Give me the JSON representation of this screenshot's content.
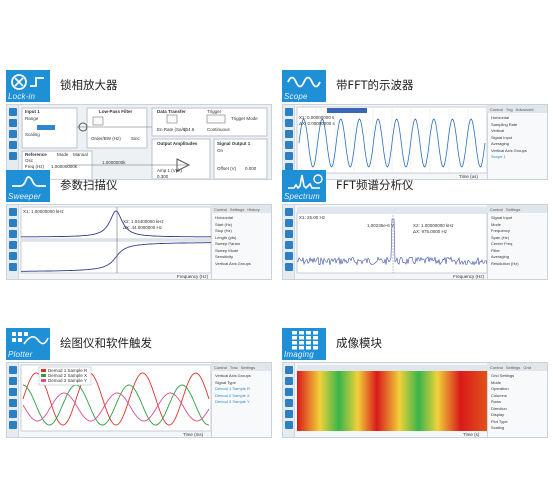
{
  "colors": {
    "badge": "#1f8fd6",
    "signal_blue": "#2d6fb8",
    "signal_red": "#d9342b",
    "signal_green": "#2f9e3f",
    "signal_pink": "#d94f8c",
    "heatmap_red": "#d91a1a",
    "heatmap_yellow": "#f2d13a",
    "heatmap_green": "#38b54a"
  },
  "tiles": [
    {
      "id": "lockin",
      "title": "锁相放大器",
      "badge_label": "Lock-in",
      "icon": "lockin-icon",
      "labels": {
        "input": "Input 1",
        "lpf": "Low-Pass Filter",
        "data_transfer": "Data Transfer",
        "reference": "Reference",
        "osc": "Osc",
        "freq": "Freq (Hz)",
        "freq_val": "1.00000000k",
        "harmonic": "Harmonic",
        "phase": "Phase",
        "output_amplitudes": "Output Amplitudes",
        "signal_output": "Signal Output 1",
        "trigger": "Trigger",
        "trigger_mode": "Trigger Mode",
        "continuous": "Continuous",
        "range": "Range",
        "scaling": "Scaling",
        "order": "Order/BW (Hz)",
        "sinc": "Sinc",
        "rate": "En Rate (Sa/s)",
        "rate_val": "104.6",
        "amp": "Amp 1 (Vpk)",
        "amp_val": "0.300",
        "on": "On",
        "offset": "Offset (V)",
        "offset_val": "0.000",
        "mode": "Mode",
        "manual": "Manual",
        "freq2_val": "1.0000000k"
      }
    },
    {
      "id": "scope",
      "title": "带FFT的示波器",
      "badge_label": "Scope",
      "icon": "scope-wave-icon",
      "tabs": [
        "Control",
        "Trig",
        "Advanced",
        "History",
        "Math"
      ],
      "cursor_labels": [
        "X1: 0.00000000 s",
        "ΔX: 0.00000000 s"
      ],
      "panel_labels": [
        "Horizontal",
        "Sampling Rate",
        "Vertical",
        "Signal Input",
        "Averaging",
        "Vertical Axis Groups",
        "Scope 1"
      ],
      "xlabel": "Time (us)"
    },
    {
      "id": "sweeper",
      "title": "参数扫描仪",
      "badge_label": "Sweeper",
      "icon": "sweeper-icon",
      "tabs": [
        "Control",
        "Settings",
        "History",
        "Math"
      ],
      "cursor_labels": [
        "X1: 1.00000000 kHz",
        "X2: 1.04400000 kHz",
        "ΔX: 44.0000000 Hz"
      ],
      "panel_labels": [
        "Horizontal",
        "Start (Hz)",
        "Stop (Hz)",
        "Length (pts)",
        "Sweep Param",
        "Sweep Mode",
        "Sensitivity",
        "Vertical Axis Groups"
      ],
      "xlabel": "Frequency (Hz)",
      "x_ticks": [
        "1.6k",
        "1.8k",
        "1.0k",
        "1.1k",
        "1.2k"
      ]
    },
    {
      "id": "spectrum",
      "title": "FFT频谱分析仪",
      "badge_label": "Spectrum",
      "icon": "spectrum-icon",
      "tabs": [
        "Control",
        "Settings"
      ],
      "cursor_labels": [
        "X1: 25.00 Hz",
        "X2: 1.00000000 kHz",
        "ΔX: 975.0000 Hz",
        "1.00235e-6 V"
      ],
      "panel_labels": [
        "Signal Input",
        "Mode",
        "Frequency",
        "Span (Hz)",
        "Center Freq",
        "Filter",
        "Averaging",
        "Resolution (Hz)"
      ],
      "xlabel": "Frequency (Hz)",
      "x_ticks": [
        "984.0",
        "992.0",
        "1000.0",
        "1008.0",
        "1016.0"
      ]
    },
    {
      "id": "plotter",
      "title": "绘图仪和软件触发",
      "badge_label": "Plotter",
      "icon": "plotter-icon",
      "tabs": [
        "Control",
        "Trac",
        "Settings",
        "Math"
      ],
      "legend": [
        "Demod 1 Sample R",
        "Demod 2 Sample X",
        "Demod 3 Sample Y"
      ],
      "panel_labels": [
        "Vertical Axis Groups",
        "Signal Type",
        "Demod 1 Sample R",
        "Demod 2 Sample X",
        "Demod 3 Sample Y"
      ],
      "xlabel": "Time (ms)"
    },
    {
      "id": "imaging",
      "title": "成像模块",
      "badge_label": "Imaging",
      "icon": "imaging-grid-icon",
      "tabs": [
        "Control",
        "Settings",
        "Grid",
        "History",
        "Math"
      ],
      "panel_labels": [
        "Grid Settings",
        "Mode",
        "Operation",
        "Columns",
        "Rows",
        "Direction",
        "Display",
        "Plot Type",
        "Scaling"
      ],
      "xlabel": "Time (s)"
    }
  ]
}
